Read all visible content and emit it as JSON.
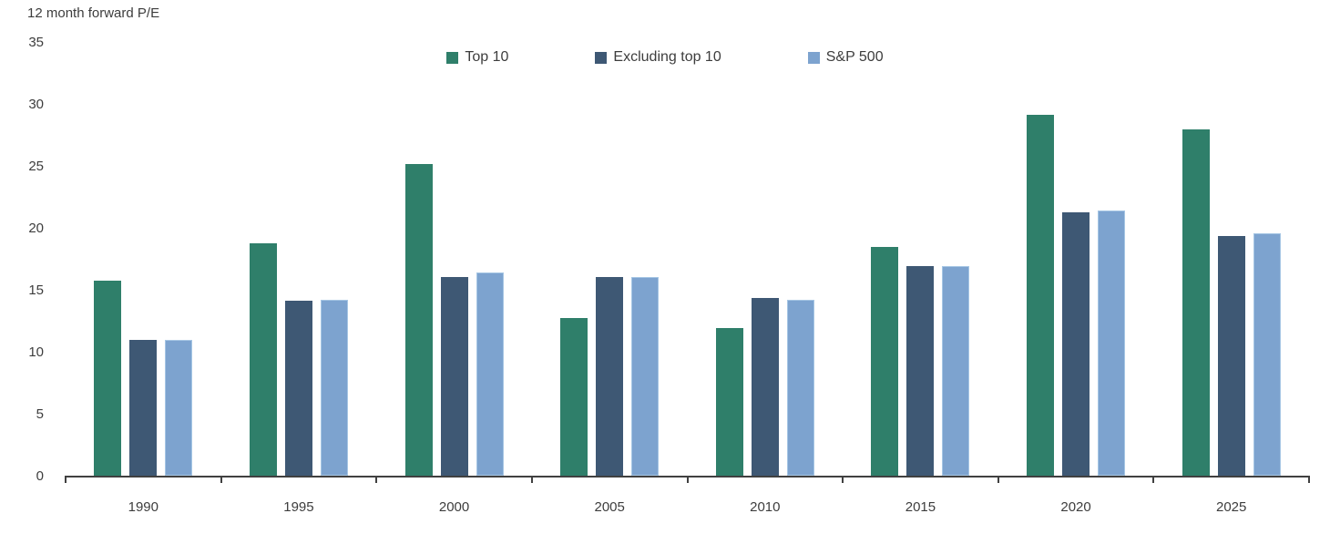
{
  "title": "12 month forward P/E",
  "colors": {
    "top10": "#2f7f6a",
    "excluding_top10": "#3e5874",
    "sp500": "#7da3cf",
    "sp500_border": "#a6c6e4",
    "axis": "#404040",
    "text": "#3d3d3d"
  },
  "legend": [
    {
      "label": "Top 10",
      "color": "#2f7f6a"
    },
    {
      "label": "Excluding top 10",
      "color": "#3e5874"
    },
    {
      "label": "S&P 500",
      "color": "#7da3cf"
    }
  ],
  "chart_data": {
    "type": "bar",
    "title": "12 month forward P/E",
    "categories": [
      "1990",
      "1995",
      "2000",
      "2005",
      "2010",
      "2015",
      "2020",
      "2025"
    ],
    "series": [
      {
        "name": "Top 10",
        "color": "#2f7f6a",
        "values": [
          15.8,
          18.8,
          25.2,
          12.8,
          12.0,
          18.5,
          29.2,
          28.0
        ]
      },
      {
        "name": "Excluding top 10",
        "color": "#3e5874",
        "values": [
          11.0,
          14.2,
          16.1,
          16.1,
          14.4,
          17.0,
          21.3,
          19.4
        ]
      },
      {
        "name": "S&P 500",
        "color": "#7da3cf",
        "values": [
          11.0,
          14.3,
          16.5,
          16.1,
          14.3,
          17.0,
          21.5,
          19.6
        ]
      }
    ],
    "xlabel": "",
    "ylabel": "12 month forward P/E",
    "ylim": [
      0,
      35
    ],
    "yticks": [
      0,
      5,
      10,
      15,
      20,
      25,
      30,
      35
    ],
    "legend_position": "top-center",
    "grid": false
  }
}
